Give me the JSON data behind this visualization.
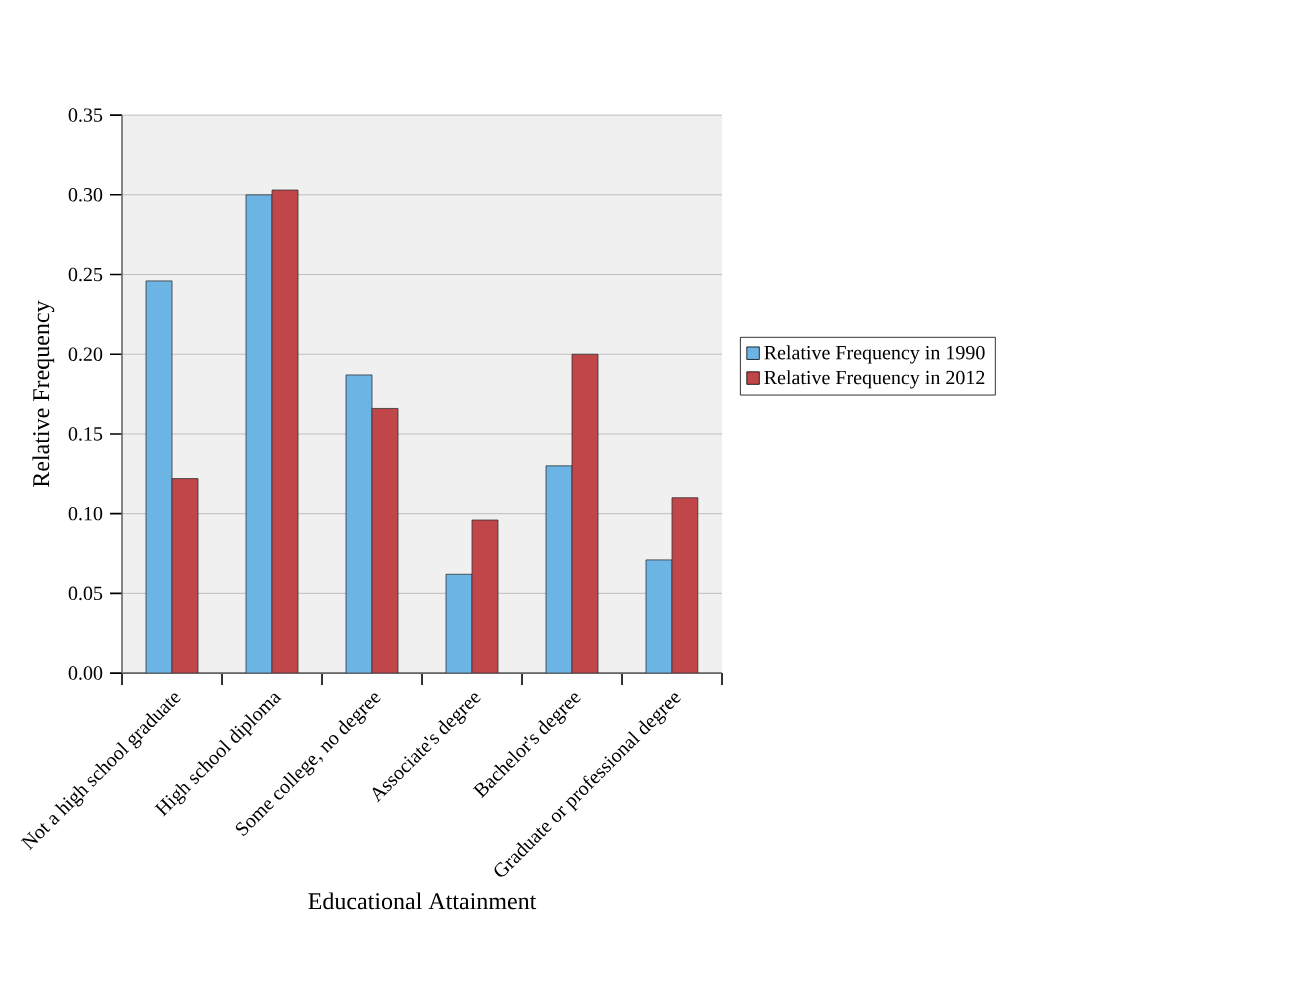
{
  "chart_data": {
    "type": "bar",
    "xlabel": "Educational Attainment",
    "ylabel": "Relative Frequency",
    "categories": [
      "Not a high school graduate",
      "High school diploma",
      "Some college, no degree",
      "Associate's degree",
      "Bachelor's degree",
      "Graduate or professional degree"
    ],
    "series": [
      {
        "name": "Relative Frequency in 1990",
        "color": "#6cb4e4",
        "values": [
          0.246,
          0.3,
          0.187,
          0.062,
          0.13,
          0.071
        ]
      },
      {
        "name": "Relative Frequency in 2012",
        "color": "#c0464a",
        "values": [
          0.122,
          0.303,
          0.166,
          0.096,
          0.2,
          0.11
        ]
      }
    ],
    "ylim": [
      0,
      0.35
    ],
    "yticks": [
      {
        "value": 0,
        "label": "0.00"
      },
      {
        "value": 0.05,
        "label": "0.05"
      },
      {
        "value": 0.1,
        "label": "0.10"
      },
      {
        "value": 0.15,
        "label": "0.15"
      },
      {
        "value": 0.2,
        "label": "0.20"
      },
      {
        "value": 0.25,
        "label": "0.25"
      },
      {
        "value": 0.3,
        "label": "0.30"
      },
      {
        "value": 0.35,
        "label": "0.35"
      }
    ],
    "grid": "y",
    "legend": "right"
  }
}
